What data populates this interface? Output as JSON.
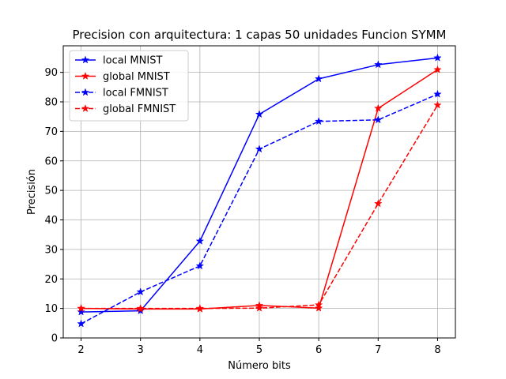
{
  "chart_data": {
    "type": "line",
    "title": "Precision con arquitectura: 1 capas 50 unidades Funcion SYMM",
    "xlabel": "Número bits",
    "ylabel": "Precisión",
    "x": [
      2,
      3,
      4,
      5,
      6,
      7,
      8
    ],
    "xlim": [
      1.7,
      8.3
    ],
    "ylim": [
      0,
      99
    ],
    "xticks": [
      "2",
      "3",
      "4",
      "5",
      "6",
      "7",
      "8"
    ],
    "yticks": [
      "0",
      "10",
      "20",
      "30",
      "40",
      "50",
      "60",
      "70",
      "80",
      "90"
    ],
    "grid": true,
    "legend_position": "top-left",
    "series": [
      {
        "name": "local MNIST",
        "color": "#0000ff",
        "dash": "solid",
        "marker": "star",
        "values": [
          8.8,
          9.2,
          32.8,
          75.8,
          87.8,
          92.6,
          94.9
        ]
      },
      {
        "name": "global MNIST",
        "color": "#ff0000",
        "dash": "solid",
        "marker": "star",
        "values": [
          10.0,
          9.8,
          9.8,
          11.0,
          10.1,
          77.8,
          90.9
        ]
      },
      {
        "name": "local FMNIST",
        "color": "#0000ff",
        "dash": "dashed",
        "marker": "star",
        "values": [
          4.8,
          15.6,
          24.4,
          64.0,
          73.4,
          73.9,
          82.6
        ]
      },
      {
        "name": "global FMNIST",
        "color": "#ff0000",
        "dash": "dashed",
        "marker": "star",
        "values": [
          10.0,
          10.0,
          10.0,
          10.1,
          11.2,
          45.5,
          78.9
        ]
      }
    ]
  }
}
